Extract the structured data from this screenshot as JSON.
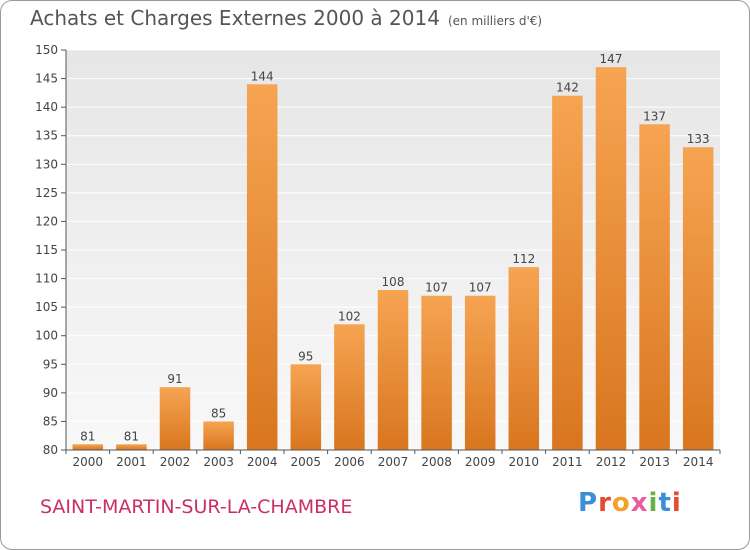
{
  "header": {
    "title": "Achats et Charges Externes 2000 à 2014",
    "unit": "(en milliers d'€)"
  },
  "footer": {
    "commune": "SAINT-MARTIN-SUR-LA-CHAMBRE",
    "logo": "Proxiti"
  },
  "colors": {
    "bar_top": "#f6a452",
    "bar_bottom": "#d9761f",
    "plot_bg_top": "#e6e6e6",
    "plot_bg_bottom": "#f8f8f8",
    "grid": "#ffffff",
    "title": "#555555",
    "commune": "#cc2e63"
  },
  "chart_data": {
    "type": "bar",
    "title": "Achats et Charges Externes 2000 à 2014",
    "subtitle": "(en milliers d'€)",
    "xlabel": "",
    "ylabel": "",
    "categories": [
      "2000",
      "2001",
      "2002",
      "2003",
      "2004",
      "2005",
      "2006",
      "2007",
      "2008",
      "2009",
      "2010",
      "2011",
      "2012",
      "2013",
      "2014"
    ],
    "values": [
      81,
      81,
      91,
      85,
      144,
      95,
      102,
      108,
      107,
      107,
      112,
      142,
      147,
      137,
      133
    ],
    "ylim": [
      80,
      150
    ],
    "yticks": [
      80,
      85,
      90,
      95,
      100,
      105,
      110,
      115,
      120,
      125,
      130,
      135,
      140,
      145,
      150
    ],
    "grid": true,
    "legend": "none"
  }
}
